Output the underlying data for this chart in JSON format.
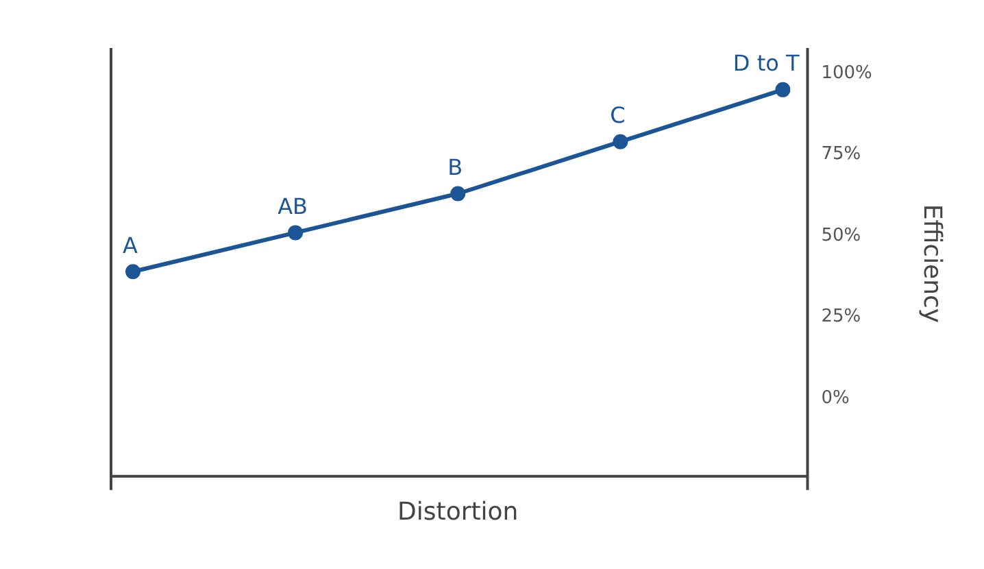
{
  "chart_data": {
    "type": "line",
    "xlabel": "Distortion",
    "ylabel": "Efficiency",
    "categories": [
      null,
      null,
      null,
      null,
      null
    ],
    "ylim": [
      -24,
      107
    ],
    "yticks": [
      {
        "value": 0,
        "label": "0%"
      },
      {
        "value": 25,
        "label": "25%"
      },
      {
        "value": 50,
        "label": "50%"
      },
      {
        "value": 75,
        "label": "75%"
      },
      {
        "value": 100,
        "label": "100%"
      }
    ],
    "tick_labels": "y",
    "grid": false,
    "legend": false,
    "marker": "circle",
    "line_style": "solid",
    "series": [
      {
        "color": "#1c5596",
        "values": [
          39,
          51,
          63,
          79,
          95
        ]
      }
    ],
    "annotations": [
      {
        "text": "A",
        "y": 39
      },
      {
        "text": "AB",
        "y": 51
      },
      {
        "text": "B",
        "y": 63
      },
      {
        "text": "C",
        "y": 79
      },
      {
        "text": "D to T",
        "y": 95
      }
    ]
  }
}
